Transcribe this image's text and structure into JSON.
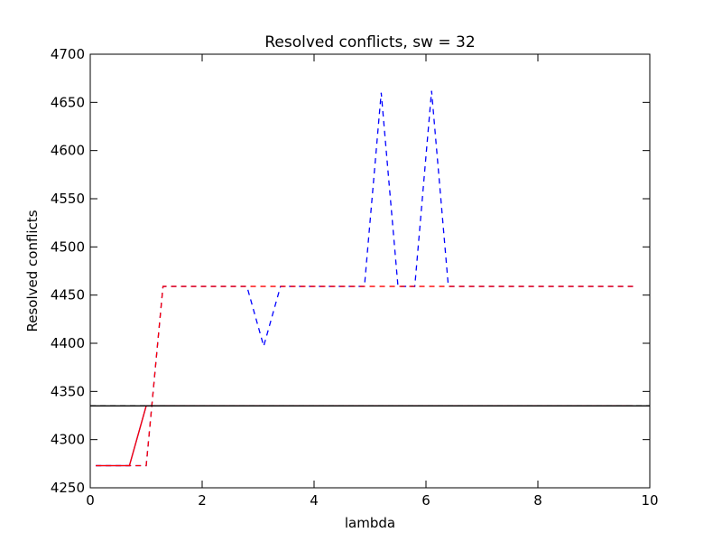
{
  "chart_data": {
    "type": "line",
    "title": "Resolved conflicts, sw = 32",
    "xlabel": "lambda",
    "ylabel": "Resolved conflicts",
    "xlim": [
      0,
      10
    ],
    "ylim": [
      4250,
      4700
    ],
    "xticks": [
      0,
      2,
      4,
      6,
      8,
      10
    ],
    "yticks": [
      4250,
      4300,
      4350,
      4400,
      4450,
      4500,
      4550,
      4600,
      4650,
      4700
    ],
    "grid": false,
    "series": [
      {
        "color": "#0000ff",
        "style": "dashed",
        "x": [
          0.1,
          0.4,
          0.7,
          1.0,
          1.3,
          1.6,
          1.9,
          2.2,
          2.5,
          2.8,
          3.1,
          3.4,
          3.7,
          4.0,
          4.3,
          4.6,
          4.9,
          5.2,
          5.5,
          5.8,
          6.1,
          6.4,
          6.7,
          7.0,
          7.3,
          7.6,
          7.9,
          8.2,
          8.5,
          8.8,
          9.1,
          9.4,
          9.7
        ],
        "y": [
          4273,
          4273,
          4273,
          4273,
          4459,
          4459,
          4459,
          4459,
          4459,
          4459,
          4397,
          4459,
          4459,
          4459,
          4459,
          4459,
          4459,
          4660,
          4459,
          4459,
          4662,
          4459,
          4459,
          4459,
          4459,
          4459,
          4459,
          4459,
          4459,
          4459,
          4459,
          4459,
          4459
        ]
      },
      {
        "color": "#ff0000",
        "style": "dashed",
        "x": [
          0.1,
          0.4,
          0.7,
          1.0,
          1.3,
          1.6,
          1.9,
          2.2,
          2.5,
          2.8,
          3.1,
          3.4,
          3.7,
          4.0,
          4.3,
          4.6,
          4.9,
          5.2,
          5.5,
          5.8,
          6.1,
          6.4,
          6.7,
          7.0,
          7.3,
          7.6,
          7.9,
          8.2,
          8.5,
          8.8,
          9.1,
          9.4,
          9.7
        ],
        "y": [
          4273,
          4273,
          4273,
          4273,
          4459,
          4459,
          4459,
          4459,
          4459,
          4459,
          4459,
          4459,
          4459,
          4459,
          4459,
          4459,
          4459,
          4459,
          4459,
          4459,
          4459,
          4459,
          4459,
          4459,
          4459,
          4459,
          4459,
          4459,
          4459,
          4459,
          4459,
          4459,
          4459
        ]
      },
      {
        "color": "#0000ff",
        "style": "solid",
        "x": [
          0.1,
          0.4,
          0.7,
          1.0,
          1.3,
          1.6,
          1.9,
          2.2,
          2.5,
          2.8,
          3.1,
          3.4,
          3.7,
          4.0,
          4.3,
          4.6,
          4.9,
          5.2,
          5.5,
          5.8,
          6.1,
          6.4,
          6.7,
          7.0,
          7.3,
          7.6,
          7.9,
          8.2,
          8.5,
          8.8,
          9.1,
          9.4,
          9.7
        ],
        "y": [
          4273,
          4273,
          4273,
          4335,
          4335,
          4335,
          4335,
          4335,
          4335,
          4335,
          4335,
          4335,
          4335,
          4335,
          4335,
          4335,
          4335,
          4335,
          4335,
          4335,
          4335,
          4335,
          4335,
          4335,
          4335,
          4335,
          4335,
          4335,
          4335,
          4335,
          4335,
          4335,
          4335
        ]
      },
      {
        "color": "#ff0000",
        "style": "solid",
        "x": [
          0.1,
          0.4,
          0.7,
          1.0,
          1.3,
          1.6,
          1.9,
          2.2,
          2.5,
          2.8,
          3.1,
          3.4,
          3.7,
          4.0,
          4.3,
          4.6,
          4.9,
          5.2,
          5.5,
          5.8,
          6.1,
          6.4,
          6.7,
          7.0,
          7.3,
          7.6,
          7.9,
          8.2,
          8.5,
          8.8,
          9.1,
          9.4,
          9.7
        ],
        "y": [
          4273,
          4273,
          4273,
          4335,
          4335,
          4335,
          4335,
          4335,
          4335,
          4335,
          4335,
          4335,
          4335,
          4335,
          4335,
          4335,
          4335,
          4335,
          4335,
          4335,
          4335,
          4335,
          4335,
          4335,
          4335,
          4335,
          4335,
          4335,
          4335,
          4335,
          4335,
          4335,
          4335
        ]
      },
      {
        "color": "#000000",
        "style": "solid",
        "x": [
          0,
          10
        ],
        "y": [
          4335,
          4335
        ]
      },
      {
        "color": "#000000",
        "style": "dashed",
        "x": [
          0,
          10
        ],
        "y": [
          4335,
          4335
        ]
      }
    ]
  }
}
